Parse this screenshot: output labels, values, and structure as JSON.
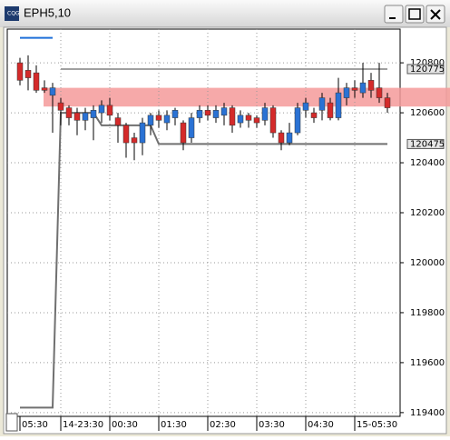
{
  "window_title": "EPH5,10",
  "chart_data": {
    "type": "candlestick",
    "categories": [
      "05:30",
      null,
      null,
      null,
      null,
      "14-23:30",
      null,
      null,
      null,
      null,
      null,
      "00:30",
      null,
      null,
      null,
      null,
      null,
      "01:30",
      null,
      null,
      null,
      null,
      null,
      "02:30",
      null,
      null,
      null,
      null,
      null,
      "03:30",
      null,
      null,
      null,
      null,
      null,
      "04:30",
      null,
      null,
      null,
      null,
      null,
      "15-05:30",
      null,
      null,
      null,
      null
    ],
    "open": [
      120800,
      120770,
      120760,
      120700,
      120670,
      120640,
      120620,
      120600,
      120570,
      120580,
      120600,
      120630,
      120580,
      120550,
      120500,
      120480,
      120550,
      120590,
      120560,
      120580,
      120560,
      120500,
      120580,
      120610,
      120580,
      120590,
      120620,
      120560,
      120590,
      120580,
      120570,
      120620,
      120520,
      120480,
      120520,
      120610,
      120600,
      120610,
      120640,
      120580,
      120660,
      120700,
      120680,
      120730,
      120700,
      120660
    ],
    "high": [
      120820,
      120830,
      120790,
      120730,
      120720,
      120660,
      120630,
      120620,
      120620,
      120630,
      120650,
      120660,
      120600,
      120560,
      120520,
      120580,
      120600,
      120610,
      120610,
      120620,
      120570,
      120600,
      120630,
      120630,
      120630,
      120640,
      120630,
      120610,
      120600,
      120590,
      120640,
      120630,
      120530,
      120560,
      120640,
      120660,
      120620,
      120680,
      120660,
      120740,
      120720,
      120730,
      120800,
      120760,
      120800,
      120680
    ],
    "low": [
      120710,
      120690,
      120680,
      120680,
      120520,
      120550,
      120550,
      120510,
      120530,
      120490,
      120560,
      120570,
      120480,
      120420,
      120410,
      120430,
      120510,
      120540,
      120530,
      120550,
      120450,
      120480,
      120560,
      120570,
      120560,
      120550,
      120520,
      120540,
      120540,
      120540,
      120550,
      120500,
      120450,
      120470,
      120510,
      120580,
      120560,
      120570,
      120570,
      120570,
      120630,
      120660,
      120660,
      120660,
      120640,
      120600
    ],
    "close": [
      120730,
      120740,
      120690,
      120690,
      120700,
      120610,
      120580,
      120570,
      120600,
      120610,
      120630,
      120590,
      120550,
      120480,
      120480,
      120560,
      120590,
      120570,
      120590,
      120610,
      120480,
      120580,
      120610,
      120590,
      120610,
      120620,
      120550,
      120590,
      120570,
      120560,
      120620,
      120520,
      120480,
      120520,
      120620,
      120640,
      120580,
      120660,
      120580,
      120680,
      120700,
      120690,
      120720,
      120690,
      120660,
      120620
    ],
    "up_color": "#2a72d4",
    "down_color": "#d42a2a",
    "lines": [
      {
        "color": "#1e6fd9",
        "values": [
          120900,
          120900,
          120900,
          120900,
          120900,
          null,
          null,
          null,
          null,
          null,
          null,
          null,
          null,
          null,
          null,
          null,
          null,
          null,
          null,
          null,
          null,
          null,
          null,
          null,
          null,
          null,
          null,
          null,
          null,
          null,
          null,
          null,
          null,
          null,
          null,
          null,
          null,
          null,
          null,
          null,
          null,
          null,
          null,
          null,
          null,
          null
        ]
      },
      {
        "color": "#a0a0a0",
        "values": [
          null,
          null,
          null,
          null,
          null,
          120775,
          120775,
          120775,
          120775,
          120775,
          120775,
          120775,
          120775,
          120775,
          120775,
          120775,
          120775,
          120775,
          120775,
          120775,
          120775,
          120775,
          120775,
          120775,
          120775,
          120775,
          120775,
          120775,
          120775,
          120775,
          120775,
          120775,
          120775,
          120775,
          120775,
          120775,
          120775,
          120775,
          120775,
          120775,
          120775,
          120775,
          120775,
          120775,
          120775,
          120775
        ]
      },
      {
        "color": "#707070",
        "values": [
          119420,
          119420,
          119420,
          119420,
          119420,
          120600,
          120600,
          120600,
          120600,
          120600,
          120550,
          120550,
          120550,
          120550,
          120550,
          120550,
          120550,
          120475,
          120475,
          120475,
          120475,
          120475,
          120475,
          120475,
          120475,
          120475,
          120475,
          120475,
          120475,
          120475,
          120475,
          120475,
          120475,
          120475,
          120475,
          120475,
          120475,
          120475,
          120475,
          120475,
          120475,
          120475,
          120475,
          120475,
          120475,
          120475
        ]
      }
    ],
    "band": {
      "values": [
        120625,
        120700
      ],
      "color": "#f59a9a"
    },
    "ylim": [
      119385,
      120935
    ],
    "yticks": [
      119400,
      119600,
      119800,
      120000,
      120200,
      120400,
      120600,
      120800
    ],
    "grid": true
  }
}
